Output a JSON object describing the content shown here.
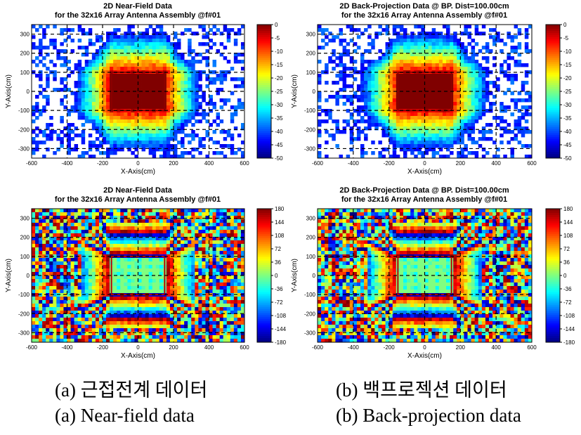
{
  "chart_data": [
    {
      "type": "heatmap",
      "title": "2D Near-Field Data",
      "subtitle": "for the 32x16 Array Antenna Assembly @f#01",
      "xlabel": "X-Axis(cm)",
      "ylabel": "Y-Axis(cm)",
      "xlim": [
        -600,
        600
      ],
      "ylim": [
        -350,
        350
      ],
      "x_ticks": [
        "-600",
        "-400",
        "-200",
        "0",
        "200",
        "400",
        "600"
      ],
      "y_ticks": [
        "-300",
        "-200",
        "-100",
        "0",
        "100",
        "200",
        "300"
      ],
      "colorbar_ticks": [
        "0",
        "-5",
        "-10",
        "-15",
        "-20",
        "-25",
        "-30",
        "-35",
        "-40",
        "-45",
        "-50"
      ],
      "colorbar_range": [
        -50,
        0
      ],
      "quantity": "magnitude",
      "aperture_x": [
        -150,
        150
      ],
      "aperture_y": [
        -100,
        100
      ],
      "grid": true
    },
    {
      "type": "heatmap",
      "title": "2D Back-Projection Data @ BP. Dist=100.00cm",
      "subtitle": "for the 32x16 Array Antenna Assembly @f#01",
      "xlabel": "X-Axis(cm)",
      "ylabel": "Y-Axis(cm)",
      "xlim": [
        -600,
        600
      ],
      "ylim": [
        -350,
        350
      ],
      "x_ticks": [
        "-600",
        "-400",
        "-200",
        "0",
        "200",
        "400",
        "600"
      ],
      "y_ticks": [
        "-300",
        "-200",
        "-100",
        "0",
        "100",
        "200",
        "300"
      ],
      "colorbar_ticks": [
        "0",
        "-5",
        "-10",
        "-15",
        "-20",
        "-25",
        "-30",
        "-35",
        "-40",
        "-45",
        "-50"
      ],
      "colorbar_range": [
        -50,
        0
      ],
      "quantity": "magnitude",
      "aperture_x": [
        -150,
        150
      ],
      "aperture_y": [
        -100,
        100
      ],
      "grid": true
    },
    {
      "type": "heatmap",
      "title": "2D Near-Field Data",
      "subtitle": "for the 32x16 Array Antenna Assembly @f#01",
      "xlabel": "X-Axis(cm)",
      "ylabel": "Y-Axis(cm)",
      "xlim": [
        -600,
        600
      ],
      "ylim": [
        -350,
        350
      ],
      "x_ticks": [
        "-600",
        "-400",
        "-200",
        "0",
        "200",
        "400",
        "600"
      ],
      "y_ticks": [
        "-300",
        "-200",
        "-100",
        "0",
        "100",
        "200",
        "300"
      ],
      "colorbar_ticks": [
        "180",
        "144",
        "108",
        "72",
        "36",
        "0",
        "-36",
        "-72",
        "-108",
        "-144",
        "-180"
      ],
      "colorbar_range": [
        -180,
        180
      ],
      "quantity": "phase",
      "aperture_x": [
        -150,
        150
      ],
      "aperture_y": [
        -100,
        100
      ],
      "grid": true
    },
    {
      "type": "heatmap",
      "title": "2D Back-Projection Data @ BP. Dist=100.00cm",
      "subtitle": "for the 32x16 Array Antenna Assembly @f#01",
      "xlabel": "X-Axis(cm)",
      "ylabel": "Y-Axis(cm)",
      "xlim": [
        -600,
        600
      ],
      "ylim": [
        -350,
        350
      ],
      "x_ticks": [
        "-600",
        "-400",
        "-200",
        "0",
        "200",
        "400",
        "600"
      ],
      "y_ticks": [
        "-300",
        "-200",
        "-100",
        "0",
        "100",
        "200",
        "300"
      ],
      "colorbar_ticks": [
        "180",
        "144",
        "108",
        "72",
        "36",
        "0",
        "-36",
        "-72",
        "-108",
        "-144",
        "-180"
      ],
      "colorbar_range": [
        -180,
        180
      ],
      "quantity": "phase",
      "aperture_x": [
        -150,
        150
      ],
      "aperture_y": [
        -100,
        100
      ],
      "grid": true
    }
  ],
  "captions": {
    "a_korean": "(a) 근접전계 데이터",
    "b_korean": "(b) 백프로젝션 데이터",
    "a_english": "(a) Near-field data",
    "b_english": "(b) Back-projection data"
  }
}
